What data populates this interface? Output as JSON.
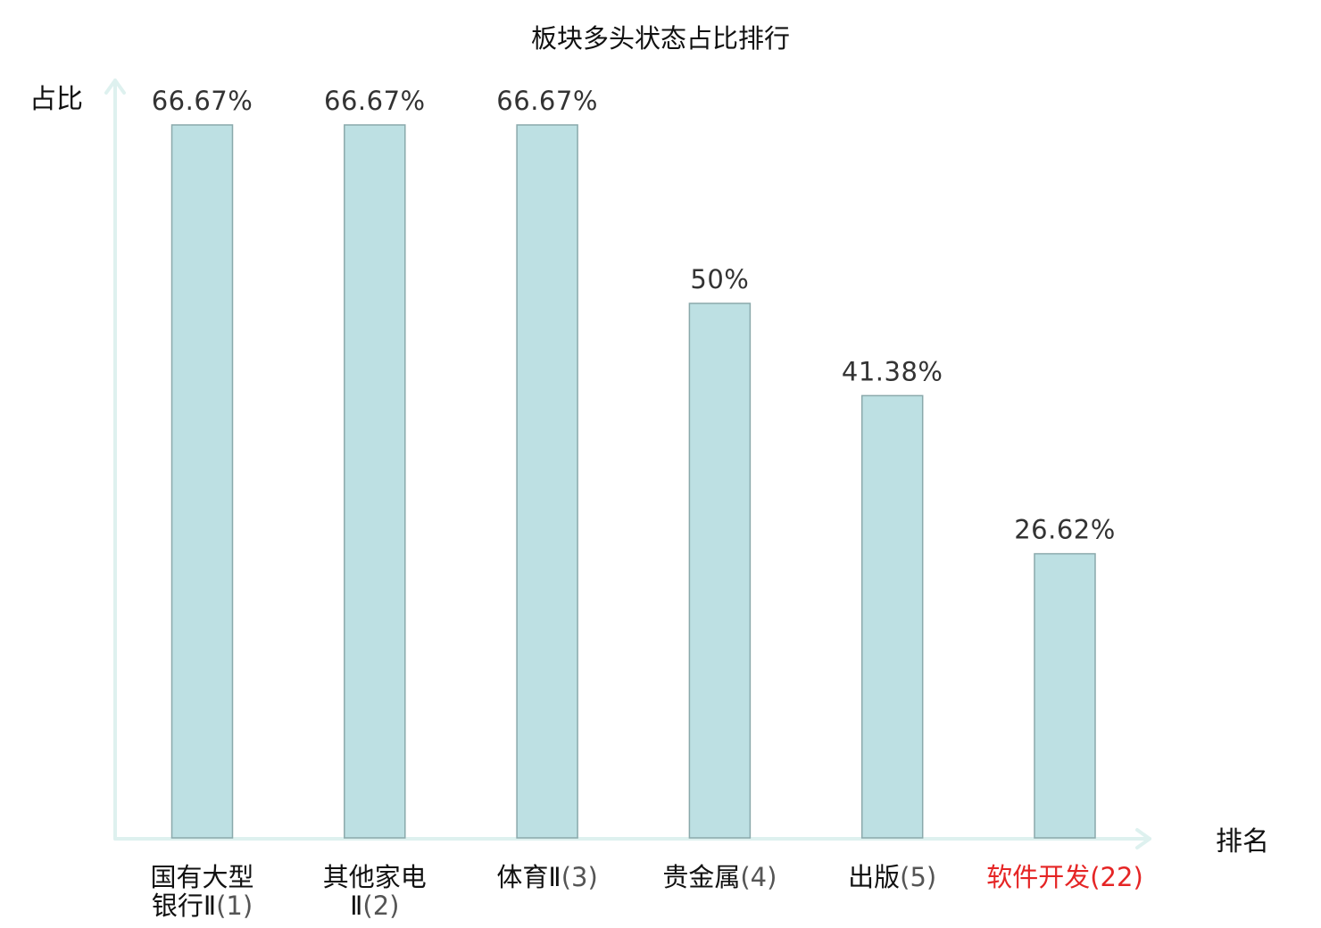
{
  "chart_data": {
    "type": "bar",
    "title": "板块多头状态占比排行",
    "ylabel": "占比",
    "xlabel": "排名",
    "ylim": [
      0,
      70
    ],
    "grid": false,
    "legend": "none",
    "value_suffix": "%",
    "categories": [
      {
        "lines": [
          {
            "name": "国有大型"
          },
          {
            "name": "银行Ⅱ",
            "num": "(1)"
          }
        ],
        "value": 66.67,
        "label": "66.67%",
        "highlight": false
      },
      {
        "lines": [
          {
            "name": "其他家电"
          },
          {
            "name": "Ⅱ",
            "num": "(2)"
          }
        ],
        "value": 66.67,
        "label": "66.67%",
        "highlight": false
      },
      {
        "lines": [
          {
            "name": "体育Ⅱ",
            "num": "(3)"
          }
        ],
        "value": 66.67,
        "label": "66.67%",
        "highlight": false
      },
      {
        "lines": [
          {
            "name": "贵金属",
            "num": "(4)"
          }
        ],
        "value": 50,
        "label": "50%",
        "highlight": false
      },
      {
        "lines": [
          {
            "name": "出版",
            "num": "(5)"
          }
        ],
        "value": 41.38,
        "label": "41.38%",
        "highlight": false
      },
      {
        "lines": [
          {
            "name": "软件开发",
            "num": "(22)"
          }
        ],
        "value": 26.62,
        "label": "26.62%",
        "highlight": true
      }
    ],
    "colors": {
      "bar_fill": "#bde0e3",
      "bar_stroke": "#8aa9ab",
      "axis": "#def1ef",
      "highlight": "#e52525"
    }
  }
}
